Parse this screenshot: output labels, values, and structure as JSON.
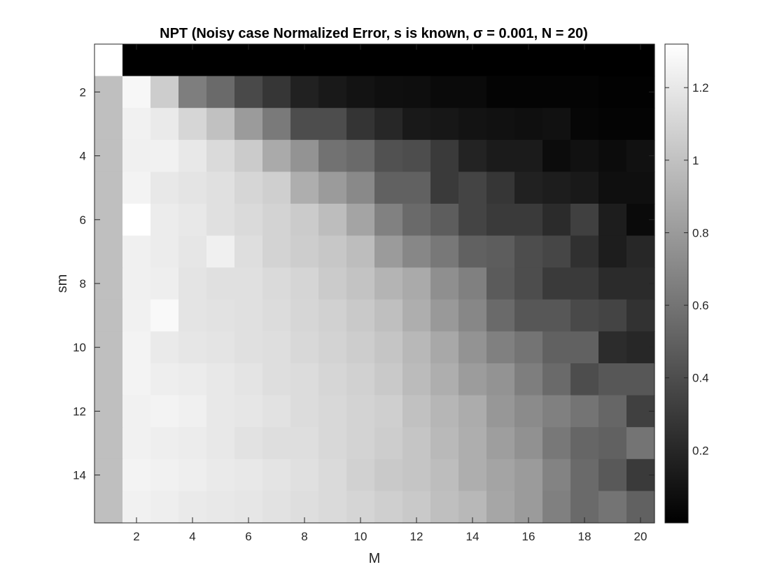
{
  "chart_data": {
    "type": "heatmap",
    "title": "NPT (Noisy case Normalized Error, s is known, σ = 0.001, N = 20)",
    "xlabel": "M",
    "ylabel": "sm",
    "x": [
      1,
      2,
      3,
      4,
      5,
      6,
      7,
      8,
      9,
      10,
      11,
      12,
      13,
      14,
      15,
      16,
      17,
      18,
      19,
      20
    ],
    "y": [
      1,
      2,
      3,
      4,
      5,
      6,
      7,
      8,
      9,
      10,
      11,
      12,
      13,
      14,
      15
    ],
    "x_ticks": [
      2,
      4,
      6,
      8,
      10,
      12,
      14,
      16,
      18,
      20
    ],
    "y_ticks": [
      2,
      4,
      6,
      8,
      10,
      12,
      14
    ],
    "xlim": [
      0.5,
      20.5
    ],
    "ylim": [
      0.5,
      15.5
    ],
    "colormap": "gray",
    "clim": [
      0.0,
      1.32
    ],
    "colorbar_ticks": [
      0.2,
      0.4,
      0.6,
      0.8,
      1,
      1.2
    ],
    "colorbar_tick_labels": [
      "0.2",
      "0.4",
      "0.6",
      "0.8",
      "1",
      "1.2"
    ],
    "z": [
      [
        1.32,
        0.0,
        0.0,
        0.0,
        0.0,
        0.0,
        0.0,
        0.0,
        0.0,
        0.0,
        0.0,
        0.0,
        0.0,
        0.0,
        0.0,
        0.0,
        0.0,
        0.0,
        0.0,
        0.0
      ],
      [
        0.99,
        1.28,
        1.06,
        0.65,
        0.55,
        0.38,
        0.28,
        0.17,
        0.13,
        0.1,
        0.08,
        0.07,
        0.05,
        0.05,
        0.02,
        0.02,
        0.02,
        0.02,
        0.01,
        0.01
      ],
      [
        0.99,
        1.25,
        1.21,
        1.11,
        1.0,
        0.8,
        0.63,
        0.4,
        0.4,
        0.27,
        0.2,
        0.13,
        0.12,
        0.1,
        0.09,
        0.08,
        0.09,
        0.03,
        0.02,
        0.02
      ],
      [
        0.99,
        1.24,
        1.25,
        1.2,
        1.13,
        1.05,
        0.88,
        0.76,
        0.59,
        0.55,
        0.42,
        0.4,
        0.3,
        0.18,
        0.14,
        0.14,
        0.06,
        0.09,
        0.06,
        0.09
      ],
      [
        0.99,
        1.26,
        1.2,
        1.18,
        1.16,
        1.11,
        1.07,
        0.9,
        0.8,
        0.71,
        0.5,
        0.5,
        0.3,
        0.35,
        0.28,
        0.17,
        0.15,
        0.13,
        0.08,
        0.08
      ],
      [
        0.99,
        1.32,
        1.22,
        1.2,
        1.16,
        1.13,
        1.09,
        1.05,
        0.98,
        0.85,
        0.67,
        0.55,
        0.48,
        0.35,
        0.3,
        0.3,
        0.22,
        0.33,
        0.15,
        0.05
      ],
      [
        0.99,
        1.24,
        1.22,
        1.19,
        1.24,
        1.15,
        1.09,
        1.06,
        1.03,
        0.98,
        0.8,
        0.7,
        0.62,
        0.5,
        0.48,
        0.4,
        0.36,
        0.25,
        0.15,
        0.2
      ],
      [
        0.99,
        1.24,
        1.23,
        1.18,
        1.16,
        1.16,
        1.13,
        1.1,
        1.05,
        1.01,
        0.93,
        0.88,
        0.74,
        0.66,
        0.47,
        0.4,
        0.3,
        0.3,
        0.22,
        0.22
      ],
      [
        0.99,
        1.25,
        1.29,
        1.18,
        1.17,
        1.16,
        1.14,
        1.11,
        1.08,
        1.04,
        0.99,
        0.9,
        0.79,
        0.7,
        0.55,
        0.45,
        0.45,
        0.38,
        0.35,
        0.26
      ],
      [
        0.99,
        1.26,
        1.21,
        1.19,
        1.18,
        1.16,
        1.15,
        1.12,
        1.09,
        1.06,
        1.02,
        0.95,
        0.87,
        0.76,
        0.66,
        0.6,
        0.5,
        0.5,
        0.23,
        0.2
      ],
      [
        0.99,
        1.26,
        1.23,
        1.22,
        1.2,
        1.18,
        1.15,
        1.14,
        1.11,
        1.08,
        1.04,
        0.97,
        0.9,
        0.81,
        0.76,
        0.65,
        0.55,
        0.4,
        0.45,
        0.45
      ],
      [
        0.99,
        1.25,
        1.26,
        1.24,
        1.2,
        1.19,
        1.17,
        1.14,
        1.12,
        1.09,
        1.07,
        1.0,
        0.94,
        0.89,
        0.78,
        0.72,
        0.66,
        0.6,
        0.53,
        0.33
      ],
      [
        0.99,
        1.25,
        1.23,
        1.22,
        1.2,
        1.17,
        1.15,
        1.15,
        1.12,
        1.09,
        1.06,
        1.02,
        0.96,
        0.9,
        0.82,
        0.75,
        0.62,
        0.53,
        0.5,
        0.6
      ],
      [
        0.99,
        1.26,
        1.25,
        1.23,
        1.21,
        1.2,
        1.18,
        1.16,
        1.13,
        1.08,
        1.04,
        1.02,
        0.98,
        0.9,
        0.85,
        0.8,
        0.68,
        0.55,
        0.46,
        0.3
      ],
      [
        0.99,
        1.25,
        1.23,
        1.21,
        1.2,
        1.19,
        1.17,
        1.15,
        1.13,
        1.1,
        1.07,
        1.04,
        0.99,
        0.95,
        0.86,
        0.8,
        0.66,
        0.55,
        0.6,
        0.5
      ]
    ]
  }
}
